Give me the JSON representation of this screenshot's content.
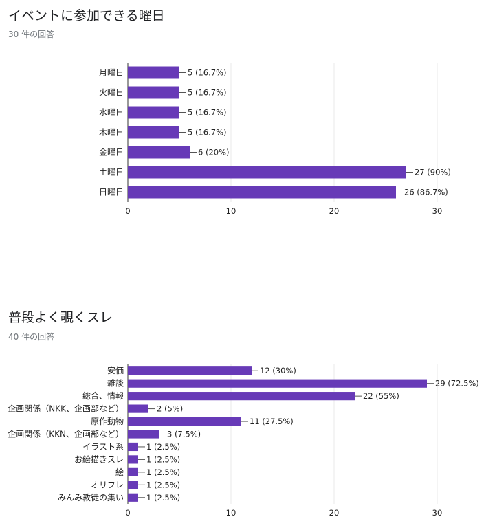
{
  "questions": [
    {
      "title": "イベントに参加できる曜日",
      "count_text": "30 件の回答"
    },
    {
      "title": "普段よく覗くスレ",
      "count_text": "40 件の回答"
    }
  ],
  "colors": {
    "bar": "#673ab7",
    "grid": "#e8e8e8",
    "axis": "#333333"
  },
  "chart_data": [
    {
      "type": "bar",
      "orientation": "horizontal",
      "categories": [
        "月曜日",
        "火曜日",
        "水曜日",
        "木曜日",
        "金曜日",
        "土曜日",
        "日曜日"
      ],
      "values": [
        5,
        5,
        5,
        5,
        6,
        27,
        26
      ],
      "value_labels": [
        "5 (16.7%)",
        "5 (16.7%)",
        "5 (16.7%)",
        "5 (16.7%)",
        "6 (20%)",
        "27 (90%)",
        "26 (86.7%)"
      ],
      "xlim": [
        0,
        30
      ],
      "xticks": [
        0,
        10,
        20,
        30
      ],
      "grid": true
    },
    {
      "type": "bar",
      "orientation": "horizontal",
      "categories": [
        "安価",
        "雑談",
        "総合、情報",
        "企画関係（NKK、企画部など）",
        "原作動物",
        "企画関係（KKN、企画部など）",
        "イラスト系",
        "お絵描きスレ",
        "絵",
        "オリフレ",
        "みんみ教徒の集い"
      ],
      "values": [
        12,
        29,
        22,
        2,
        11,
        3,
        1,
        1,
        1,
        1,
        1
      ],
      "value_labels": [
        "12 (30%)",
        "29 (72.5%)",
        "22 (55%)",
        "2 (5%)",
        "11 (27.5%)",
        "3 (7.5%)",
        "1 (2.5%)",
        "1 (2.5%)",
        "1 (2.5%)",
        "1 (2.5%)",
        "1 (2.5%)"
      ],
      "xlim": [
        0,
        30
      ],
      "xticks": [
        0,
        10,
        20,
        30
      ],
      "grid": true
    }
  ]
}
